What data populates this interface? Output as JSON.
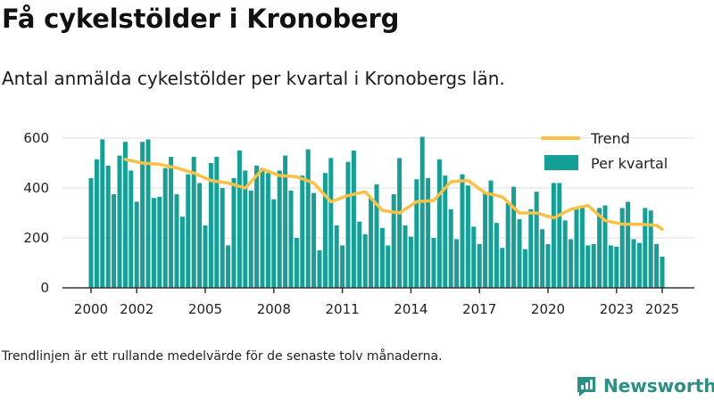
{
  "title": "Få cykelstölder i Kronoberg",
  "subtitle": "Antal anmälda cykelstölder per kvartal i Kronobergs län.",
  "note": "Trendlinjen är ett rullande medelvärde för de senaste tolv månaderna.",
  "brand": {
    "name": "Newsworthy",
    "icon": "newsworthy-chart-logo-icon"
  },
  "colors": {
    "bars": "#12a097",
    "trend": "#fbc145",
    "grid": "#e4e4e4",
    "axis": "#333333",
    "brand": "#2a8f84"
  },
  "chart_data": {
    "type": "bar",
    "title": "",
    "xlabel": "",
    "ylabel": "",
    "ylim": [
      0,
      650
    ],
    "yticks": [
      0,
      200,
      400,
      600
    ],
    "x_tick_labels": [
      "2000",
      "2002",
      "2005",
      "2008",
      "2011",
      "2014",
      "2017",
      "2020",
      "2023",
      "2025"
    ],
    "x_tick_years": [
      2000,
      2002,
      2005,
      2008,
      2011,
      2014,
      2017,
      2020,
      2023,
      2025
    ],
    "x_start": 2000.0,
    "grid": true,
    "legend_position": "top-right",
    "legend": [
      "Trend",
      "Per kvartal"
    ],
    "series": [
      {
        "name": "Per kvartal",
        "type": "bar",
        "values": [
          440,
          515,
          595,
          490,
          375,
          530,
          585,
          470,
          345,
          585,
          595,
          360,
          365,
          480,
          525,
          375,
          285,
          455,
          525,
          420,
          250,
          500,
          525,
          400,
          170,
          440,
          550,
          470,
          390,
          490,
          480,
          460,
          355,
          470,
          530,
          390,
          200,
          450,
          555,
          380,
          150,
          460,
          520,
          250,
          170,
          505,
          550,
          265,
          215,
          360,
          415,
          240,
          170,
          375,
          520,
          250,
          205,
          435,
          605,
          440,
          200,
          515,
          450,
          315,
          195,
          455,
          410,
          245,
          175,
          380,
          430,
          260,
          160,
          340,
          405,
          275,
          155,
          315,
          385,
          235,
          175,
          420,
          420,
          270,
          195,
          315,
          330,
          170,
          175,
          320,
          330,
          170,
          165,
          320,
          345,
          195,
          180,
          320,
          310,
          175,
          125
        ]
      },
      {
        "name": "Trend",
        "type": "line",
        "quarter_index": [
          6,
          9,
          12,
          15,
          18,
          21,
          24,
          27,
          30,
          33,
          36,
          39,
          42,
          45,
          48,
          51,
          54,
          57,
          60,
          63,
          66,
          69,
          72,
          75,
          78,
          81,
          84,
          87,
          90,
          93,
          96,
          99,
          100
        ],
        "values": [
          515,
          500,
          495,
          480,
          460,
          430,
          420,
          400,
          475,
          450,
          445,
          420,
          345,
          370,
          385,
          310,
          300,
          345,
          350,
          425,
          430,
          380,
          365,
          300,
          300,
          280,
          315,
          330,
          270,
          255,
          255,
          250,
          235
        ]
      }
    ]
  }
}
